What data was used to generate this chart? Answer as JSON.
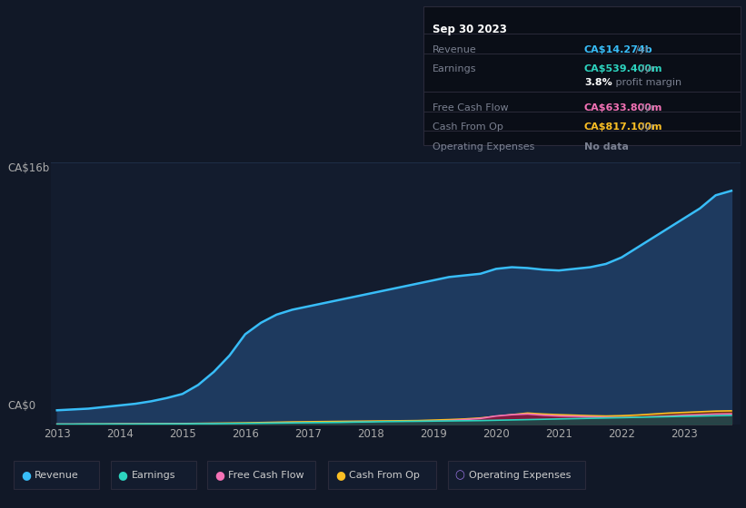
{
  "background_color": "#111827",
  "plot_bg_color": "#131c2e",
  "grid_color": "#1e2d45",
  "title_box": {
    "date": "Sep 30 2023",
    "rows": [
      {
        "label": "Revenue",
        "value": "CA$14.274b",
        "value_color": "#38bdf8",
        "suffix": " /yr",
        "extra": null
      },
      {
        "label": "Earnings",
        "value": "CA$539.400m",
        "value_color": "#2dd4bf",
        "suffix": " /yr",
        "extra": "3.8% profit margin"
      },
      {
        "label": "Free Cash Flow",
        "value": "CA$633.800m",
        "value_color": "#f472b6",
        "suffix": " /yr",
        "extra": null
      },
      {
        "label": "Cash From Op",
        "value": "CA$817.100m",
        "value_color": "#fbbf24",
        "suffix": " /yr",
        "extra": null
      },
      {
        "label": "Operating Expenses",
        "value": "No data",
        "value_color": "#6b7280",
        "suffix": "",
        "extra": null
      }
    ]
  },
  "years": [
    2013,
    2013.25,
    2013.5,
    2013.75,
    2014,
    2014.25,
    2014.5,
    2014.75,
    2015,
    2015.25,
    2015.5,
    2015.75,
    2016,
    2016.25,
    2016.5,
    2016.75,
    2017,
    2017.25,
    2017.5,
    2017.75,
    2018,
    2018.25,
    2018.5,
    2018.75,
    2019,
    2019.25,
    2019.5,
    2019.75,
    2020,
    2020.25,
    2020.5,
    2020.75,
    2021,
    2021.25,
    2021.5,
    2021.75,
    2022,
    2022.25,
    2022.5,
    2022.75,
    2023,
    2023.25,
    2023.5,
    2023.75
  ],
  "revenue": [
    0.85,
    0.9,
    0.95,
    1.05,
    1.15,
    1.25,
    1.4,
    1.6,
    1.85,
    2.4,
    3.2,
    4.2,
    5.5,
    6.2,
    6.7,
    7.0,
    7.2,
    7.4,
    7.6,
    7.8,
    8.0,
    8.2,
    8.4,
    8.6,
    8.8,
    9.0,
    9.1,
    9.2,
    9.5,
    9.6,
    9.55,
    9.45,
    9.4,
    9.5,
    9.6,
    9.8,
    10.2,
    10.8,
    11.4,
    12.0,
    12.6,
    13.2,
    14.0,
    14.274
  ],
  "earnings": [
    0.0,
    0.0,
    0.01,
    0.01,
    0.01,
    0.01,
    0.02,
    0.02,
    0.02,
    0.03,
    0.03,
    0.04,
    0.05,
    0.06,
    0.07,
    0.08,
    0.09,
    0.1,
    0.11,
    0.13,
    0.14,
    0.16,
    0.17,
    0.18,
    0.19,
    0.2,
    0.21,
    0.22,
    0.24,
    0.26,
    0.28,
    0.3,
    0.32,
    0.34,
    0.36,
    0.38,
    0.4,
    0.42,
    0.44,
    0.46,
    0.48,
    0.5,
    0.52,
    0.5394
  ],
  "free_cash_flow": [
    0.0,
    0.0,
    0.0,
    0.0,
    0.01,
    0.01,
    0.01,
    0.02,
    0.02,
    0.02,
    0.03,
    0.03,
    0.04,
    0.05,
    0.06,
    0.07,
    0.08,
    0.09,
    0.1,
    0.11,
    0.12,
    0.13,
    0.14,
    0.15,
    0.18,
    0.22,
    0.28,
    0.35,
    0.5,
    0.58,
    0.62,
    0.55,
    0.5,
    0.48,
    0.45,
    0.42,
    0.4,
    0.42,
    0.46,
    0.5,
    0.55,
    0.58,
    0.62,
    0.6338
  ],
  "cash_from_op": [
    0.0,
    0.0,
    0.01,
    0.01,
    0.02,
    0.02,
    0.03,
    0.04,
    0.04,
    0.05,
    0.06,
    0.07,
    0.08,
    0.1,
    0.12,
    0.14,
    0.15,
    0.16,
    0.17,
    0.18,
    0.19,
    0.2,
    0.21,
    0.22,
    0.25,
    0.28,
    0.32,
    0.38,
    0.48,
    0.58,
    0.68,
    0.62,
    0.58,
    0.55,
    0.52,
    0.5,
    0.52,
    0.56,
    0.62,
    0.68,
    0.72,
    0.76,
    0.8,
    0.8171
  ],
  "revenue_color": "#38bdf8",
  "revenue_fill": "#1e3a5f",
  "earnings_color": "#2dd4bf",
  "earnings_fill": "#134e4a",
  "fcf_color": "#f472b6",
  "fcf_fill": "#831843",
  "cop_color": "#fbbf24",
  "cop_fill": "#78350f",
  "ylim": [
    0,
    16
  ],
  "xticks": [
    2013,
    2014,
    2015,
    2016,
    2017,
    2018,
    2019,
    2020,
    2021,
    2022,
    2023
  ],
  "ytick_labels": [
    "CA$0",
    "CA$16b"
  ],
  "legend_items": [
    {
      "label": "Revenue",
      "color": "#38bdf8",
      "empty": false
    },
    {
      "label": "Earnings",
      "color": "#2dd4bf",
      "empty": false
    },
    {
      "label": "Free Cash Flow",
      "color": "#f472b6",
      "empty": false
    },
    {
      "label": "Cash From Op",
      "color": "#fbbf24",
      "empty": false
    },
    {
      "label": "Operating Expenses",
      "color": "#9370db",
      "empty": true
    }
  ]
}
